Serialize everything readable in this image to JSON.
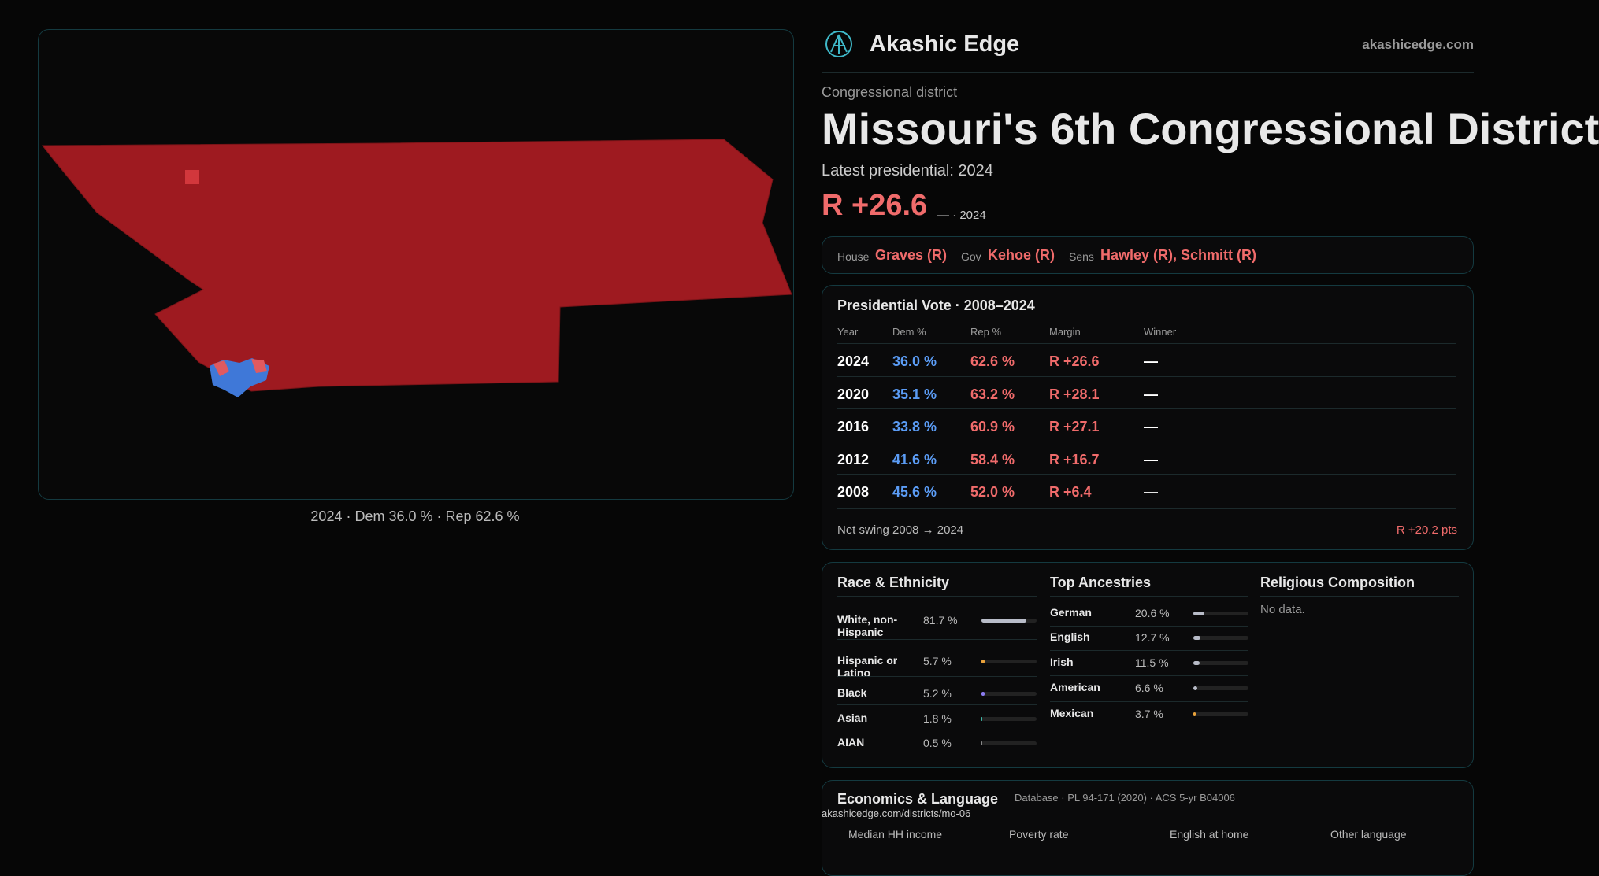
{
  "brand": {
    "name": "Akashic Edge",
    "site": "akashicedge.com"
  },
  "map": {
    "caption": "2024 · Dem 36.0 % · Rep 62.6 %"
  },
  "header": {
    "kicker": "Congressional district",
    "title": "Missouri's 6th Congressional District",
    "latest": "Latest presidential: 2024",
    "margin": "R +26.6",
    "margin_note": "— · 2024"
  },
  "officials": [
    {
      "role": "House",
      "name": "Graves (R)"
    },
    {
      "role": "Gov",
      "name": "Kehoe (R)"
    },
    {
      "role": "Sens",
      "name": "Hawley (R), Schmitt (R)"
    }
  ],
  "presidential": {
    "title": "Presidential Vote · 2008–2024",
    "columns": [
      "Year",
      "Dem %",
      "Rep %",
      "Margin",
      "Winner"
    ],
    "rows": [
      [
        "2024",
        "36.0 %",
        "62.6 %",
        "R +26.6",
        "—"
      ],
      [
        "2020",
        "35.1 %",
        "63.2 %",
        "R +28.1",
        "—"
      ],
      [
        "2016",
        "33.8 %",
        "60.9 %",
        "R +27.1",
        "—"
      ],
      [
        "2012",
        "41.6 %",
        "58.4 %",
        "R +16.7",
        "—"
      ],
      [
        "2008",
        "45.6 %",
        "52.0 %",
        "R +6.4",
        "—"
      ]
    ],
    "swing_label": "Net swing 2008 → 2024",
    "swing_value": "R +20.2 pts"
  },
  "race": {
    "title": "Race & Ethnicity",
    "rows": [
      {
        "name": "White, non-Hispanic",
        "value": 81.7,
        "label": "81.7 %",
        "color": "#b8bcc8"
      },
      {
        "name": "Hispanic or Latino",
        "value": 5.7,
        "label": "5.7 %",
        "color": "#e9a23b"
      },
      {
        "name": "Black",
        "value": 5.2,
        "label": "5.2 %",
        "color": "#8b7cf0"
      },
      {
        "name": "Asian",
        "value": 1.8,
        "label": "1.8 %",
        "color": "#3fb8a8"
      },
      {
        "name": "AIAN",
        "value": 0.5,
        "label": "0.5 %",
        "color": "#888888"
      }
    ]
  },
  "ancestry": {
    "title": "Top Ancestries",
    "rows": [
      {
        "name": "German",
        "value": 20.6,
        "label": "20.6 %",
        "color": "#b8bcc8"
      },
      {
        "name": "English",
        "value": 12.7,
        "label": "12.7 %",
        "color": "#b8bcc8"
      },
      {
        "name": "Irish",
        "value": 11.5,
        "label": "11.5 %",
        "color": "#b8bcc8"
      },
      {
        "name": "American",
        "value": 6.6,
        "label": "6.6 %",
        "color": "#b8bcc8"
      },
      {
        "name": "Mexican",
        "value": 3.7,
        "label": "3.7 %",
        "color": "#e9a23b"
      }
    ]
  },
  "religion": {
    "title": "Religious Composition",
    "note": "No data."
  },
  "economics": {
    "title": "Economics & Language",
    "metrics": [
      "Median HH income",
      "Poverty rate",
      "English at home",
      "Other language"
    ]
  },
  "footer": {
    "sources": "Database · PL 94-171 (2020) · ACS 5-yr B04006",
    "url": "akashicedge.com/districts/mo-06"
  }
}
